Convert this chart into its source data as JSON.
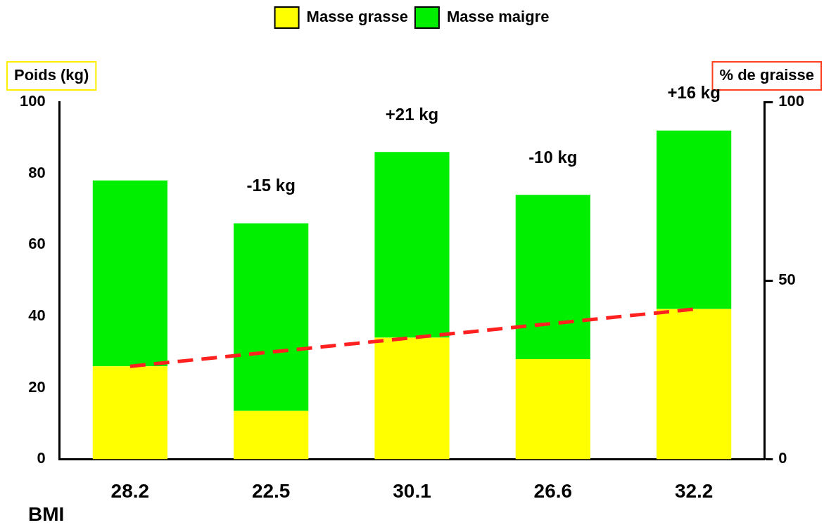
{
  "chart_data": {
    "type": "bar",
    "stacked": true,
    "legend": "top",
    "grid": false,
    "xlabel": "BMI",
    "ylabel": "Poids (kg)",
    "y2label": "% de graisse",
    "categories": [
      "28.2",
      "22.5",
      "30.1",
      "26.6",
      "32.2"
    ],
    "series": [
      {
        "name": "Masse grasse",
        "color": "#ffff00",
        "values": [
          26,
          13.5,
          34,
          28,
          42
        ]
      },
      {
        "name": "Masse maigre",
        "color": "#00ee00",
        "values": [
          52,
          52.5,
          52,
          46,
          50
        ]
      },
      {
        "type": "line",
        "axis": "y2",
        "color": "#ff2020",
        "line_style": "dashed",
        "marker": "none",
        "values": [
          26,
          30,
          34,
          38,
          42
        ]
      }
    ],
    "ylim": [
      0,
      100
    ],
    "yticks": [
      0,
      20,
      40,
      60,
      80,
      100
    ],
    "y2lim": [
      0,
      100
    ],
    "y2ticks": [
      0,
      50,
      100
    ],
    "annotations": [
      "-15 kg",
      "+21 kg",
      "-10 kg",
      "+16 kg"
    ]
  }
}
